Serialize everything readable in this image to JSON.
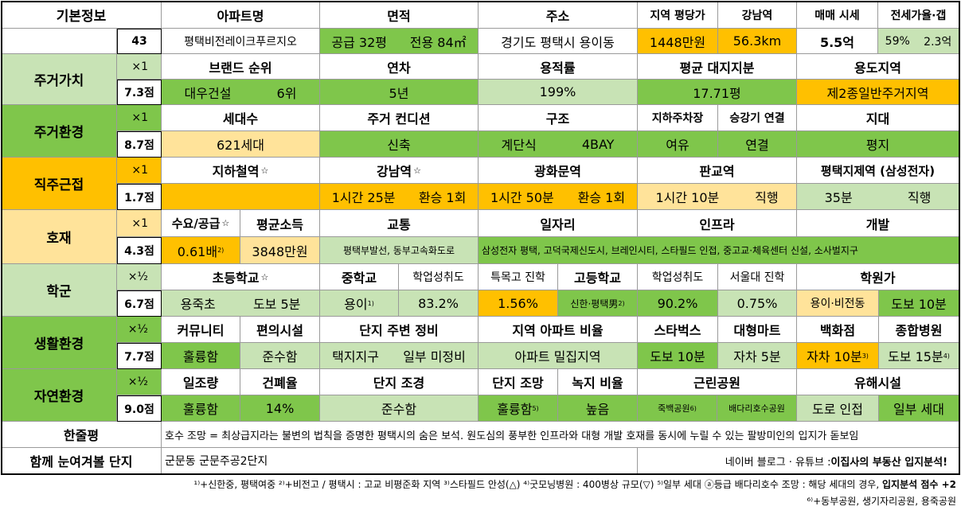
{
  "basic": {
    "label": "기본정보",
    "count": "43",
    "headers": [
      "아파트명",
      "면적",
      "주소",
      "지역 평당가",
      "강남역",
      "매매 시세",
      "전세가율·갭"
    ],
    "apt_name": "평택비전레이크푸르지오",
    "area_supply": "공급 32평",
    "area_exclusive": "전용 84㎡",
    "address": "경기도 평택시 용이동",
    "price_per_pyeong": "1448만원",
    "gangnam_distance": "56.3km",
    "sale_price": "5.5억",
    "jeonse_ratio": "59%",
    "jeonse_gap": "2.3억"
  },
  "living_value": {
    "label": "주거가치",
    "weight": "×1",
    "score": "7.3점",
    "headers": [
      "브랜드 순위",
      "연차",
      "용적률",
      "평균 대지지분",
      "용도지역"
    ],
    "brand": "대우건설",
    "brand_rank": "6위",
    "age": "5년",
    "far": "199%",
    "land_share": "17.71평",
    "zoning": "제2종일반주거지역"
  },
  "living_env": {
    "label": "주거환경",
    "weight": "×1",
    "score": "8.7점",
    "headers": [
      "세대수",
      "주거 컨디션",
      "구조",
      "지하주차장",
      "승강기 연결",
      "지대"
    ],
    "households": "621세대",
    "condition": "신축",
    "structure_a": "계단식",
    "structure_b": "4BAY",
    "parking": "여유",
    "elevator": "연결",
    "terrain": "평지"
  },
  "commute": {
    "label": "직주근접",
    "weight": "×1",
    "score": "1.7점",
    "star": "☆",
    "headers": [
      "지하철역",
      "강남역",
      "광화문역",
      "판교역",
      "평택지제역 (삼성전자)"
    ],
    "gangnam_time": "1시간 25분",
    "gangnam_transfer": "환승 1회",
    "gwanghwamun_time": "1시간 50분",
    "gwanghwamun_transfer": "환승 1회",
    "pangyo_time": "1시간 10분",
    "pangyo_mode": "직행",
    "jije_time": "35분",
    "jije_mode": "직행"
  },
  "development": {
    "label": "호재",
    "weight": "×1",
    "score": "4.3점",
    "headers": [
      "수요/공급",
      "평균소득",
      "교통",
      "일자리",
      "인프라",
      "개발"
    ],
    "supply": "0.61배",
    "supply_note": "2)",
    "income": "3848만원",
    "transport": "평택부발선, 동부고속화도로",
    "jobs_infra_dev": "삼성전자 평택, 고덕국제신도시, 브레인시티, 스타필드 인접, 중고교·체육센터 신설, 소사벌지구"
  },
  "school": {
    "label": "학군",
    "weight": "×½",
    "score": "6.7점",
    "headers": [
      "초등학교",
      "중학교",
      "학업성취도",
      "특목고 진학",
      "고등학교",
      "학업성취도",
      "서울대 진학",
      "학원가"
    ],
    "elementary": "용죽초",
    "elementary_walk": "도보 5분",
    "middle": "용이",
    "middle_note": "1)",
    "middle_achievement": "83.2%",
    "special_hs": "1.56%",
    "high": "신한·평택男",
    "high_note": "2)",
    "high_achievement": "90.2%",
    "snu": "0.75%",
    "academy": "용이·비전동",
    "academy_walk": "도보 10분"
  },
  "life_env": {
    "label": "생활환경",
    "weight": "×½",
    "score": "7.7점",
    "headers": [
      "커뮤니티",
      "편의시설",
      "단지 주변 정비",
      "지역 아파트 비율",
      "스타벅스",
      "대형마트",
      "백화점",
      "종합병원"
    ],
    "community": "훌륭함",
    "convenience": "준수함",
    "surround_a": "택지지구",
    "surround_b": "일부 미정비",
    "apt_ratio": "아파트 밀집지역",
    "starbucks": "도보 10분",
    "mart": "자차 5분",
    "department": "자차 10분",
    "department_note": "3)",
    "hospital": "도보 15분",
    "hospital_note": "4)"
  },
  "nature": {
    "label": "자연환경",
    "weight": "×½",
    "score": "9.0점",
    "headers": [
      "일조량",
      "건폐율",
      "단지 조경",
      "단지 조망",
      "녹지 비율",
      "근린공원",
      "유해시설"
    ],
    "sunlight": "훌륭함",
    "bcr": "14%",
    "landscape": "준수함",
    "view": "훌륭함",
    "view_note": "5)",
    "green": "높음",
    "park_a": "죽백공원",
    "park_a_note": "6)",
    "park_b": "배다리호수공원",
    "hazard_a": "도로 인접",
    "hazard_b": "일부 세대"
  },
  "summary": {
    "label": "한줄평",
    "text": "호수 조망 = 최상급지라는 불변의 법칙을 증명한 평택시의 숨은 보석. 원도심의 풍부한 인프라와 대형 개발 호재를 동시에 누릴 수 있는 팔방미인의 입지가 돋보임"
  },
  "together": {
    "label": "함께 눈여겨볼 단지",
    "text": "군문동 군문주공2단지",
    "blog_prefix": "네이버 블로그 · 유튜브 : ",
    "blog_name": "이집사의 부동산 입지분석!"
  },
  "footnotes": {
    "line1": "¹⁾+신한중, 평택여중 ²⁾+비전고 / 평택시 : 고교 비평준화 지역 ³⁾스타필드 안성(△) ⁴⁾굿모닝병원 : 400병상 규모(▽) ⁵⁾일부 세대 ⓐ등급 배다리호수 조망 : 해당 세대의 경우, ",
    "line1_bold": "입지분석 점수 +2",
    "line2": "⁶⁾+동부공원, 생기자리공원, 용죽공원"
  },
  "colors": {
    "green": "#7fc64b",
    "light_green": "#c8e3b5",
    "orange": "#ffc000",
    "light_orange": "#ffe39a",
    "category_green_light": "#c8e3b5"
  }
}
